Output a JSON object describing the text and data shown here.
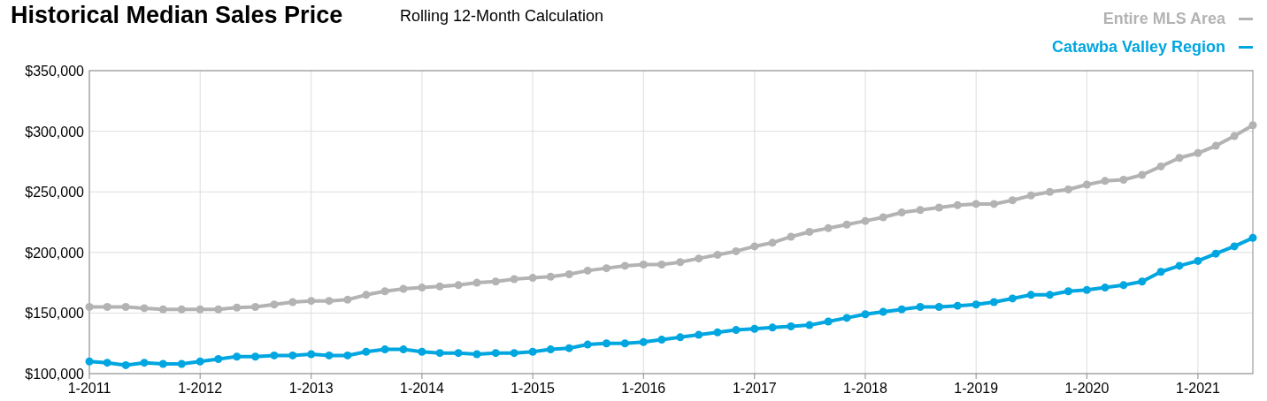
{
  "chart_data": {
    "type": "line",
    "title": "Historical Median Sales Price",
    "subtitle": "Rolling 12-Month Calculation",
    "x": [
      "2011-01",
      "2011-03",
      "2011-05",
      "2011-07",
      "2011-09",
      "2011-11",
      "2012-01",
      "2012-03",
      "2012-05",
      "2012-07",
      "2012-09",
      "2012-11",
      "2013-01",
      "2013-03",
      "2013-05",
      "2013-07",
      "2013-09",
      "2013-11",
      "2014-01",
      "2014-03",
      "2014-05",
      "2014-07",
      "2014-09",
      "2014-11",
      "2015-01",
      "2015-03",
      "2015-05",
      "2015-07",
      "2015-09",
      "2015-11",
      "2016-01",
      "2016-03",
      "2016-05",
      "2016-07",
      "2016-09",
      "2016-11",
      "2017-01",
      "2017-03",
      "2017-05",
      "2017-07",
      "2017-09",
      "2017-11",
      "2018-01",
      "2018-03",
      "2018-05",
      "2018-07",
      "2018-09",
      "2018-11",
      "2019-01",
      "2019-03",
      "2019-05",
      "2019-07",
      "2019-09",
      "2019-11",
      "2020-01",
      "2020-03",
      "2020-05",
      "2020-07",
      "2020-09",
      "2020-11",
      "2021-01",
      "2021-03",
      "2021-05",
      "2021-07"
    ],
    "series": [
      {
        "name": "Entire MLS Area",
        "color": "#b3b3b3",
        "values": [
          155000,
          155000,
          155000,
          154000,
          153000,
          153000,
          153000,
          153000,
          154500,
          155000,
          157000,
          159000,
          160000,
          160000,
          161000,
          165000,
          168000,
          170000,
          171000,
          172000,
          173000,
          175000,
          176000,
          178000,
          179000,
          180000,
          182000,
          185000,
          187000,
          189000,
          190000,
          190000,
          192000,
          195000,
          198000,
          201000,
          205000,
          208000,
          213000,
          217000,
          220000,
          223000,
          226000,
          229000,
          233000,
          235000,
          237000,
          239000,
          240000,
          240000,
          243000,
          247000,
          250000,
          252000,
          256000,
          259000,
          260000,
          264000,
          271000,
          278000,
          282000,
          288000,
          296000,
          305000
        ]
      },
      {
        "name": "Catawba Valley Region",
        "color": "#00a6e0",
        "values": [
          110000,
          109000,
          107000,
          109000,
          108000,
          108000,
          110000,
          112000,
          114000,
          114000,
          115000,
          115000,
          116000,
          115000,
          115000,
          118000,
          120000,
          120000,
          118000,
          117000,
          117000,
          116000,
          117000,
          117000,
          118000,
          120000,
          121000,
          124000,
          125000,
          125000,
          126000,
          128000,
          130000,
          132000,
          134000,
          136000,
          137000,
          138000,
          139000,
          140000,
          143000,
          146000,
          149000,
          151000,
          153000,
          155000,
          155000,
          156000,
          157000,
          159000,
          162000,
          165000,
          165000,
          168000,
          169000,
          171000,
          173000,
          176000,
          184000,
          189000,
          193000,
          199000,
          205000,
          212000
        ]
      }
    ],
    "xlim": [
      "2011-01",
      "2021-07"
    ],
    "xticks": [
      {
        "value": "2011-01",
        "label": "1-2011"
      },
      {
        "value": "2012-01",
        "label": "1-2012"
      },
      {
        "value": "2013-01",
        "label": "1-2013"
      },
      {
        "value": "2014-01",
        "label": "1-2014"
      },
      {
        "value": "2015-01",
        "label": "1-2015"
      },
      {
        "value": "2016-01",
        "label": "1-2016"
      },
      {
        "value": "2017-01",
        "label": "1-2017"
      },
      {
        "value": "2018-01",
        "label": "1-2018"
      },
      {
        "value": "2019-01",
        "label": "1-2019"
      },
      {
        "value": "2020-01",
        "label": "1-2020"
      },
      {
        "value": "2021-01",
        "label": "1-2021"
      }
    ],
    "ylim": [
      100000,
      350000
    ],
    "yticks": [
      {
        "value": 100000,
        "label": "$100,000"
      },
      {
        "value": 150000,
        "label": "$150,000"
      },
      {
        "value": 200000,
        "label": "$200,000"
      },
      {
        "value": 250000,
        "label": "$250,000"
      },
      {
        "value": 300000,
        "label": "$300,000"
      },
      {
        "value": 350000,
        "label": "$350,000"
      }
    ],
    "grid": true,
    "legend": "top right",
    "marker": "circle",
    "line_style": "solid"
  }
}
